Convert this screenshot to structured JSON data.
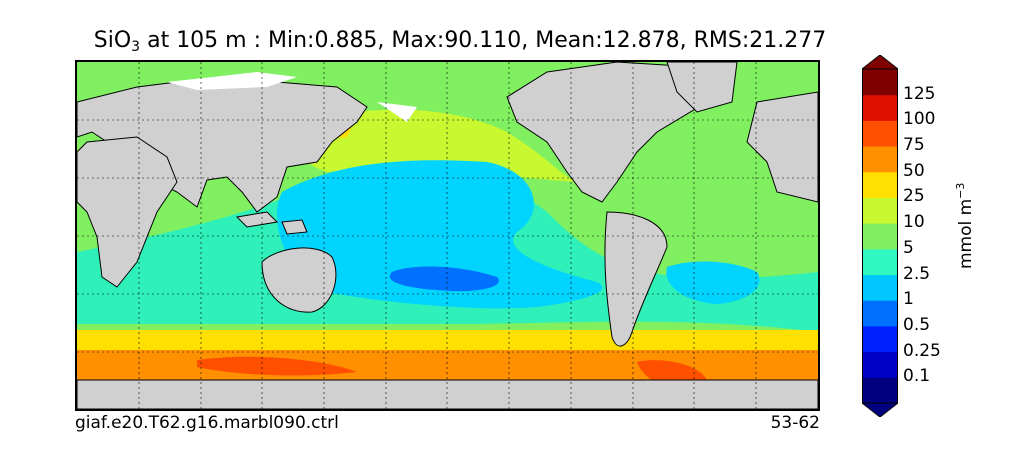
{
  "title": {
    "species": "SiO",
    "species_sub": "3",
    "rest": " at 105 m : Min:0.885, Max:90.110, Mean:12.878, RMS:21.277"
  },
  "footer": {
    "case_name": "giaf.e20.T62.g16.marbl090.ctrl",
    "years": "53-62"
  },
  "colorbar": {
    "units_base": "mmol m",
    "units_exp": "−3",
    "tick_labels": [
      "125",
      "100",
      "75",
      "50",
      "25",
      "10",
      "5",
      "2.5",
      "1",
      "0.5",
      "0.25",
      "0.1"
    ],
    "colors": [
      "#000080",
      "#0000c8",
      "#0020ff",
      "#0070ff",
      "#00c8ff",
      "#30f8c0",
      "#80f060",
      "#c8f830",
      "#ffe000",
      "#ff9000",
      "#ff5000",
      "#e01000",
      "#800000"
    ]
  },
  "map_colors": {
    "land": "#d0d0d0",
    "ice": "#ffffff"
  }
}
